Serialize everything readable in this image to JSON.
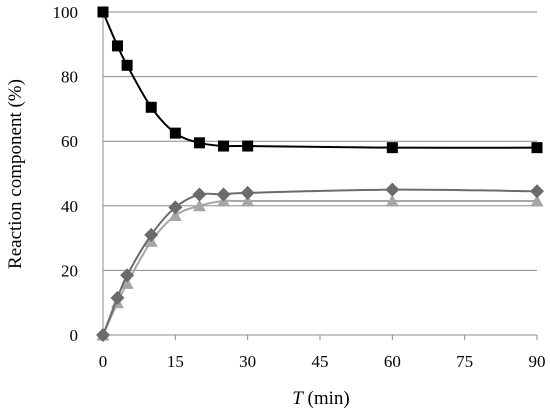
{
  "chart_data": {
    "type": "line",
    "xlabel_var": "T",
    "xlabel_unit": " (min)",
    "ylabel": "Reaction component (%)",
    "xlim": [
      0,
      90
    ],
    "ylim": [
      0,
      100
    ],
    "x_ticks": [
      0,
      15,
      30,
      45,
      60,
      75,
      90
    ],
    "y_ticks": [
      0,
      20,
      40,
      60,
      80,
      100
    ],
    "grid": "horizontal",
    "legend": "none",
    "series": [
      {
        "marker": "square",
        "color": "#000000",
        "x": [
          0,
          3,
          5,
          10,
          15,
          20,
          25,
          30,
          60,
          90
        ],
        "values": [
          100,
          89.5,
          83.5,
          70.5,
          62.5,
          59.5,
          58.5,
          58.5,
          58,
          58
        ]
      },
      {
        "marker": "diamond",
        "color": "#6b6b6b",
        "x": [
          0,
          3,
          5,
          10,
          15,
          20,
          25,
          30,
          60,
          90
        ],
        "values": [
          0,
          11.5,
          18.5,
          31,
          39.5,
          43.5,
          43.5,
          44,
          45,
          44.5
        ]
      },
      {
        "marker": "triangle",
        "color": "#a6a6a6",
        "x": [
          0,
          3,
          5,
          10,
          15,
          20,
          25,
          30,
          60,
          90
        ],
        "values": [
          0,
          10,
          16,
          29,
          37,
          40,
          41.5,
          41.5,
          41.5,
          41.5
        ]
      }
    ]
  }
}
